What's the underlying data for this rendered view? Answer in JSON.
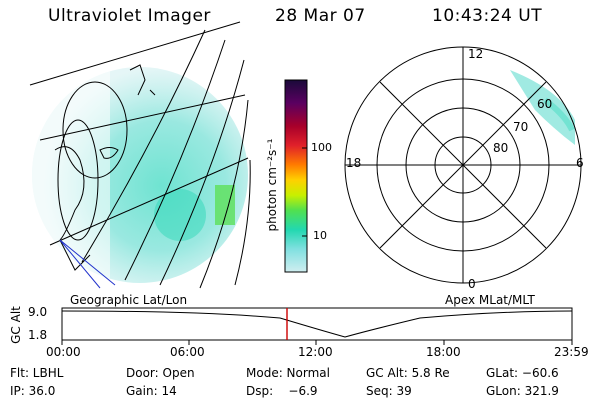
{
  "header": {
    "title": "Ultraviolet Imager",
    "date": "28 Mar 07",
    "time": "10:43:24 UT"
  },
  "colorbar": {
    "unit_label": "photon cm⁻²s⁻¹",
    "ticks": [
      "100",
      "10"
    ],
    "colors": [
      "#1a0a3a",
      "#5a0060",
      "#a8002a",
      "#e0202a",
      "#ff7a00",
      "#ffd000",
      "#c8f000",
      "#50e050",
      "#22d8b0",
      "#80e0e0",
      "#d0eef0"
    ]
  },
  "polar": {
    "mlt_labels": {
      "top": "12",
      "bottom": "0",
      "left": "18",
      "right": "6"
    },
    "mlat_labels": [
      "60",
      "70",
      "80"
    ]
  },
  "panel_labels": {
    "left": "Geographic Lat/Lon",
    "right": "Apex MLat/MLT"
  },
  "timeline": {
    "ylabel": "GC Alt",
    "yticks": [
      "9.0",
      "1.8"
    ],
    "xticks": [
      "00:00",
      "06:00",
      "12:00",
      "18:00",
      "23:59"
    ],
    "marker_time": "10:43:24",
    "marker_color": "#cc0000"
  },
  "footer": {
    "row1": [
      "Flt: LBHL",
      "Door: Open",
      "Mode: Normal",
      "GC Alt: 5.8 Re",
      "GLat: −60.6"
    ],
    "row2": [
      "IP: 36.0",
      "Gain: 14",
      "Dsp:    −6.9",
      "Seq: 39",
      "GLon: 321.9"
    ]
  }
}
